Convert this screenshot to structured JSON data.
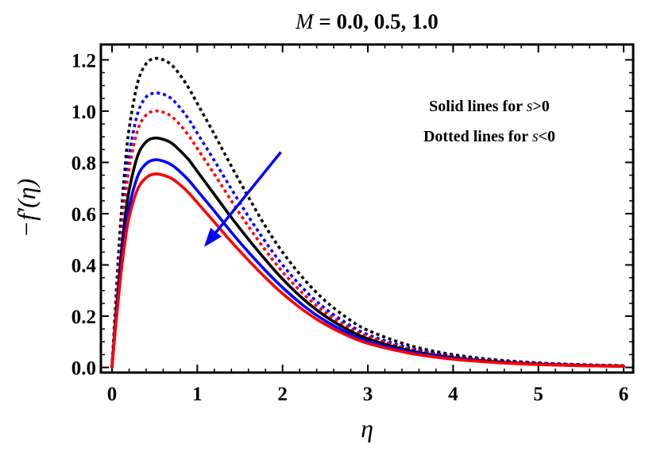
{
  "chart_data": {
    "type": "line",
    "title": {
      "var": "M",
      "rest": " = 0.0, 0.5, 1.0"
    },
    "xlabel": "η",
    "ylabel": "−f′(η)",
    "xlim": [
      0,
      6
    ],
    "ylim": [
      -0.02,
      1.26
    ],
    "x_ticks": [
      0,
      1,
      2,
      3,
      4,
      5,
      6
    ],
    "x_tick_labels": [
      "0",
      "1",
      "2",
      "3",
      "4",
      "5",
      "6"
    ],
    "y_ticks": [
      0,
      0.2,
      0.4,
      0.6,
      0.8,
      1.0,
      1.2
    ],
    "y_tick_labels": [
      "0.0",
      "0.2",
      "0.4",
      "0.6",
      "0.8",
      "1.0",
      "1.2"
    ],
    "grid": false,
    "x": [
      0,
      0.05,
      0.1,
      0.15,
      0.2,
      0.3,
      0.4,
      0.5,
      0.6,
      0.7,
      0.8,
      0.9,
      1.0,
      1.2,
      1.4,
      1.6,
      1.8,
      2.0,
      2.25,
      2.5,
      2.75,
      3.0,
      3.5,
      4.0,
      4.5,
      5.0,
      5.5,
      6.0
    ],
    "series": [
      {
        "color": "#000000",
        "style": "dotted",
        "values": [
          0,
          0.297,
          0.56,
          0.77,
          0.93,
          1.11,
          1.185,
          1.205,
          1.2,
          1.18,
          1.14,
          1.09,
          1.03,
          0.91,
          0.785,
          0.665,
          0.55,
          0.45,
          0.345,
          0.26,
          0.195,
          0.145,
          0.085,
          0.05,
          0.03,
          0.018,
          0.011,
          0.007
        ]
      },
      {
        "color": "#0000ff",
        "style": "dotted",
        "values": [
          0,
          0.264,
          0.5,
          0.69,
          0.83,
          0.99,
          1.055,
          1.07,
          1.066,
          1.048,
          1.012,
          0.968,
          0.914,
          0.807,
          0.696,
          0.589,
          0.49,
          0.4,
          0.305,
          0.23,
          0.173,
          0.128,
          0.075,
          0.044,
          0.026,
          0.016,
          0.01,
          0.006
        ]
      },
      {
        "color": "#ff0000",
        "style": "dotted",
        "values": [
          0,
          0.247,
          0.465,
          0.645,
          0.775,
          0.925,
          0.985,
          1.0,
          0.996,
          0.979,
          0.946,
          0.904,
          0.854,
          0.754,
          0.65,
          0.55,
          0.457,
          0.373,
          0.285,
          0.215,
          0.162,
          0.12,
          0.07,
          0.041,
          0.024,
          0.015,
          0.009,
          0.006
        ]
      },
      {
        "color": "#000000",
        "style": "solid",
        "values": [
          0,
          0.22,
          0.415,
          0.575,
          0.69,
          0.825,
          0.88,
          0.895,
          0.89,
          0.875,
          0.845,
          0.81,
          0.765,
          0.675,
          0.585,
          0.5,
          0.42,
          0.345,
          0.265,
          0.2,
          0.15,
          0.112,
          0.065,
          0.038,
          0.022,
          0.013,
          0.008,
          0.005
        ]
      },
      {
        "color": "#0000ff",
        "style": "solid",
        "values": [
          0,
          0.2,
          0.375,
          0.52,
          0.625,
          0.745,
          0.795,
          0.81,
          0.805,
          0.79,
          0.763,
          0.73,
          0.69,
          0.61,
          0.527,
          0.45,
          0.378,
          0.312,
          0.24,
          0.182,
          0.137,
          0.102,
          0.06,
          0.035,
          0.02,
          0.012,
          0.007,
          0.004
        ]
      },
      {
        "color": "#ff0000",
        "style": "solid",
        "values": [
          0,
          0.185,
          0.35,
          0.485,
          0.585,
          0.695,
          0.74,
          0.755,
          0.75,
          0.737,
          0.712,
          0.681,
          0.643,
          0.567,
          0.49,
          0.418,
          0.35,
          0.288,
          0.222,
          0.168,
          0.126,
          0.094,
          0.055,
          0.032,
          0.019,
          0.011,
          0.007,
          0.004
        ]
      }
    ],
    "annotations": {
      "solid_note": {
        "prefix": "Solid lines for ",
        "var": "s",
        "suffix": ">0"
      },
      "dotted_note": {
        "prefix": "Dotted lines for ",
        "var": "s",
        "suffix": "<0"
      },
      "arrow": {
        "color": "#0000ff",
        "from": [
          1.98,
          0.84
        ],
        "to": [
          1.08,
          0.47
        ]
      }
    }
  }
}
